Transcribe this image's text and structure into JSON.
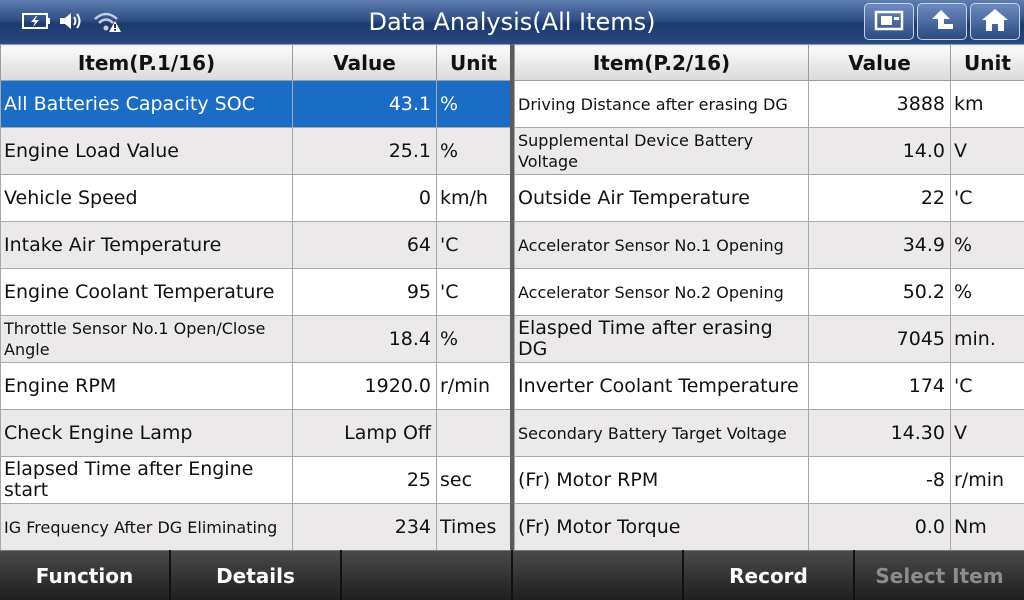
{
  "header": {
    "title": "Data Analysis(All Items)",
    "status_icons": [
      "battery-charging-icon",
      "speaker-icon",
      "wifi-warning-icon"
    ],
    "nav_buttons": [
      "screenshot-icon",
      "back-arrow-icon",
      "home-icon"
    ]
  },
  "left": {
    "col_item": "Item(P.1/16)",
    "col_value": "Value",
    "col_unit": "Unit",
    "rows": [
      {
        "item": "All Batteries Capacity SOC",
        "value": "43.1",
        "unit": "%"
      },
      {
        "item": "Engine Load Value",
        "value": "25.1",
        "unit": "%"
      },
      {
        "item": "Vehicle Speed",
        "value": "0",
        "unit": "km/h"
      },
      {
        "item": "Intake Air Temperature",
        "value": "64",
        "unit": "'C"
      },
      {
        "item": "Engine Coolant Temperature",
        "value": "95",
        "unit": "'C"
      },
      {
        "item": "Throttle Sensor No.1 Open/Close Angle",
        "value": "18.4",
        "unit": "%"
      },
      {
        "item": "Engine RPM",
        "value": "1920.0",
        "unit": "r/min"
      },
      {
        "item": "Check Engine Lamp",
        "value": "Lamp Off",
        "unit": ""
      },
      {
        "item": "Elapsed Time after Engine start",
        "value": "25",
        "unit": "sec"
      },
      {
        "item": "IG Frequency After DG Eliminating",
        "value": "234",
        "unit": "Times"
      }
    ]
  },
  "right": {
    "col_item": "Item(P.2/16)",
    "col_value": "Value",
    "col_unit": "Unit",
    "rows": [
      {
        "item": "Driving Distance after erasing DG",
        "value": "3888",
        "unit": "km"
      },
      {
        "item": "Supplemental Device Battery Voltage",
        "value": "14.0",
        "unit": "V"
      },
      {
        "item": "Outside Air Temperature",
        "value": "22",
        "unit": "'C"
      },
      {
        "item": "Accelerator Sensor No.1 Opening",
        "value": "34.9",
        "unit": "%"
      },
      {
        "item": "Accelerator Sensor No.2 Opening",
        "value": "50.2",
        "unit": "%"
      },
      {
        "item": "Elasped Time after erasing DG",
        "value": "7045",
        "unit": "min."
      },
      {
        "item": "Inverter Coolant Temperature",
        "value": "174",
        "unit": "'C"
      },
      {
        "item": "Secondary Battery Target Voltage",
        "value": "14.30",
        "unit": "V"
      },
      {
        "item": "(Fr) Motor RPM",
        "value": "-8",
        "unit": "r/min"
      },
      {
        "item": "(Fr) Motor Torque",
        "value": "0.0",
        "unit": "Nm"
      }
    ]
  },
  "footer": {
    "buttons": [
      "Function",
      "Details",
      "",
      "",
      "Record",
      "Select Item"
    ]
  }
}
